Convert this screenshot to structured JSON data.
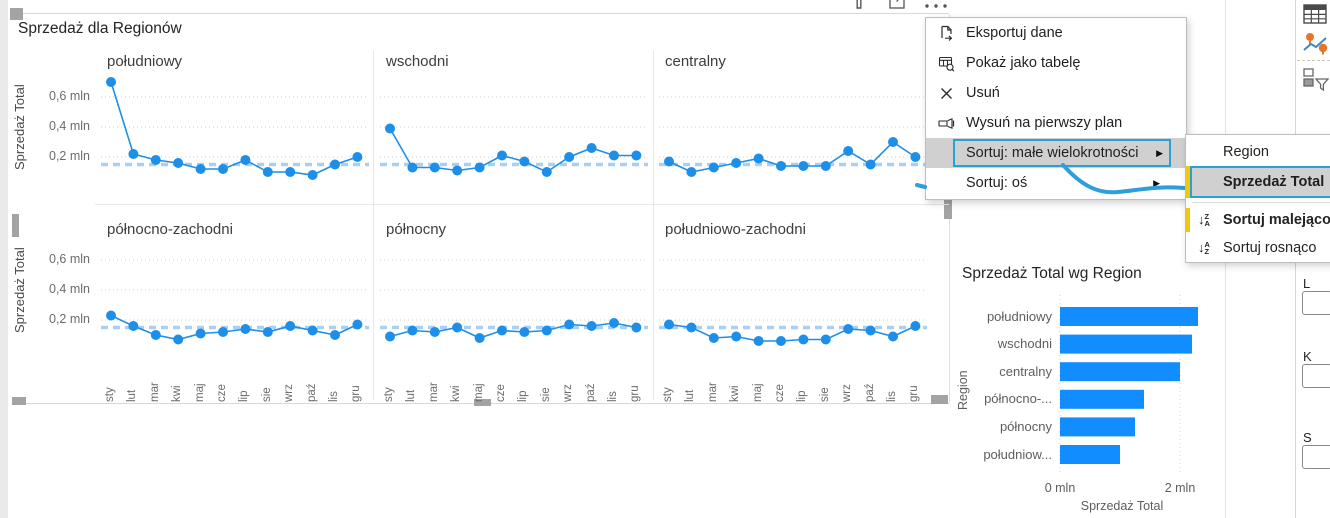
{
  "colors": {
    "accent_blue": "#118DFF",
    "line_blue": "#1E8FE8",
    "reference_line_blue": "#A9CFF3",
    "selection_border_blue": "#2AA0D8",
    "highlight_gray": "#D0D0D0",
    "accent_yellow": "#F2C80F",
    "text_dark": "#252423",
    "text_gray": "#605E5C"
  },
  "visual_toolbar": {
    "icons": [
      "filter-icon",
      "focus-mode-icon",
      "more-options-icon"
    ]
  },
  "context_menu": {
    "items": [
      {
        "id": "export-data",
        "label": "Eksportuj dane",
        "icon": "export-icon"
      },
      {
        "id": "show-as-table",
        "label": "Pokaż jako tabelę",
        "icon": "table-search-icon"
      },
      {
        "id": "remove",
        "label": "Usuń",
        "icon": "close-icon"
      },
      {
        "id": "bring-forward",
        "label": "Wysuń na pierwszy plan",
        "icon": "bring-forward-icon"
      },
      {
        "id": "sort-small-multiples",
        "label": "Sortuj: małe wielokrotności",
        "submenu": true,
        "highlighted": true
      },
      {
        "id": "sort-axis",
        "label": "Sortuj: oś",
        "submenu": true
      }
    ]
  },
  "sort_submenu": {
    "fields": [
      {
        "label": "Region",
        "selected": false
      },
      {
        "label": "Sprzedaż Total",
        "selected": true
      }
    ],
    "options": [
      {
        "label": "Sortuj malejąco",
        "icon": "sort-descending-icon",
        "selected": true
      },
      {
        "label": "Sortuj rosnąco",
        "icon": "sort-ascending-icon",
        "selected": false
      }
    ]
  },
  "right_panel": {
    "field_labels": [
      "L",
      "K",
      "S"
    ],
    "gallery_icons": [
      "table-visual-icon",
      "map-visual-icon",
      "slicer-visual-icon"
    ]
  },
  "chart_data": [
    {
      "type": "line",
      "small_multiples": true,
      "title": "Sprzedaż dla Regionów",
      "ylabel": "Sprzedaż Total",
      "categories": [
        "sty",
        "lut",
        "mar",
        "kwi",
        "maj",
        "cze",
        "lip",
        "sie",
        "wrz",
        "paź",
        "lis",
        "gru"
      ],
      "y_ticks": [
        {
          "value": 0.6,
          "label": "0,6 mln"
        },
        {
          "value": 0.4,
          "label": "0,4 mln"
        },
        {
          "value": 0.2,
          "label": "0,2 mln"
        }
      ],
      "ylim": [
        0,
        0.75
      ],
      "unit": "mln",
      "reference_line": 0.15,
      "grid": true,
      "series": [
        {
          "name": "południowy",
          "values": [
            0.7,
            0.22,
            0.18,
            0.16,
            0.12,
            0.12,
            0.18,
            0.1,
            0.1,
            0.08,
            0.15,
            0.2
          ]
        },
        {
          "name": "wschodni",
          "values": [
            0.39,
            0.13,
            0.13,
            0.11,
            0.13,
            0.21,
            0.17,
            0.1,
            0.2,
            0.26,
            0.21,
            0.21
          ]
        },
        {
          "name": "centralny",
          "values": [
            0.17,
            0.1,
            0.13,
            0.16,
            0.19,
            0.14,
            0.14,
            0.14,
            0.24,
            0.15,
            0.3,
            0.2
          ]
        },
        {
          "name": "północno-zachodni",
          "values": [
            0.23,
            0.16,
            0.1,
            0.07,
            0.11,
            0.12,
            0.14,
            0.12,
            0.16,
            0.13,
            0.1,
            0.17
          ]
        },
        {
          "name": "północny",
          "values": [
            0.09,
            0.13,
            0.12,
            0.15,
            0.08,
            0.13,
            0.12,
            0.13,
            0.17,
            0.16,
            0.18,
            0.15
          ]
        },
        {
          "name": "południowo-zachodni",
          "values": [
            0.17,
            0.15,
            0.08,
            0.09,
            0.06,
            0.06,
            0.07,
            0.07,
            0.14,
            0.13,
            0.09,
            0.16
          ]
        }
      ]
    },
    {
      "type": "bar",
      "orientation": "horizontal",
      "title": "Sprzedaż Total wg Region",
      "xlabel": "Sprzedaż Total",
      "ylabel": "Region",
      "categories": [
        "południowy",
        "wschodni",
        "centralny",
        "północno-...",
        "północny",
        "południow..."
      ],
      "values": [
        2.3,
        2.2,
        2.0,
        1.4,
        1.25,
        1.0
      ],
      "x_ticks": [
        {
          "value": 0,
          "label": "0 mln"
        },
        {
          "value": 2,
          "label": "2 mln"
        }
      ],
      "xlim": [
        0,
        2.4
      ],
      "grid": true
    }
  ]
}
